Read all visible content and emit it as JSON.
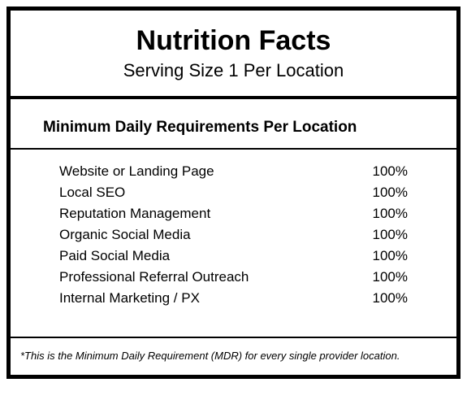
{
  "header": {
    "title": "Nutrition Facts",
    "subtitle": "Serving Size 1 Per Location"
  },
  "section": {
    "title": "Minimum Daily Requirements Per Location"
  },
  "items": [
    {
      "label": "Website or Landing Page",
      "value": "100%"
    },
    {
      "label": "Local SEO",
      "value": "100%"
    },
    {
      "label": "Reputation Management",
      "value": "100%"
    },
    {
      "label": "Organic Social Media",
      "value": "100%"
    },
    {
      "label": "Paid Social Media",
      "value": "100%"
    },
    {
      "label": "Professional Referral Outreach",
      "value": "100%"
    },
    {
      "label": "Internal Marketing / PX",
      "value": "100%"
    }
  ],
  "footnote": "*This is the Minimum Daily Requirement (MDR) for every single provider location.",
  "style": {
    "type": "table",
    "border_color": "#000000",
    "border_width_outer": 5,
    "border_width_thick": 4,
    "border_width_thin": 2,
    "background_color": "#ffffff",
    "text_color": "#000000",
    "title_fontsize": 34,
    "title_fontweight": 800,
    "subtitle_fontsize": 22,
    "section_title_fontsize": 19,
    "section_title_fontweight": 700,
    "row_fontsize": 17,
    "footnote_fontsize": 13,
    "footnote_style": "italic"
  }
}
